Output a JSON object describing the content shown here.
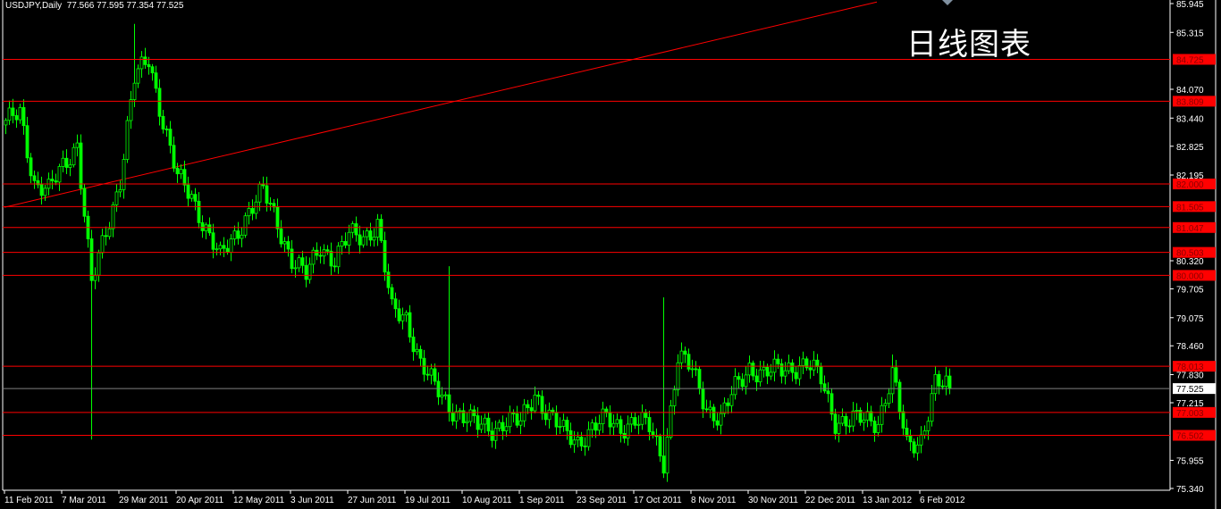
{
  "header": {
    "symbol_timeframe": "USDJPY,Daily",
    "ohlc": "77.566 77.595 77.354 77.525"
  },
  "overlay_text": "日线图表",
  "colors": {
    "background": "#000000",
    "candles": "#00ff00",
    "levels": "#ff0000",
    "level_label_bg": "#ff0000",
    "axis": "#ffffff",
    "current_price_line": "#808080"
  },
  "chart_data": {
    "type": "candlestick",
    "title": "USDJPY,Daily",
    "ylim": [
      75.34,
      85.945
    ],
    "y_ticks": [
      "85.945",
      "85.315",
      "84.070",
      "83.440",
      "82.825",
      "82.195",
      "80.320",
      "79.705",
      "79.075",
      "78.460",
      "77.830",
      "77.215",
      "75.955",
      "75.340"
    ],
    "x_ticks": [
      "11 Feb 2011",
      "7 Mar 2011",
      "29 Mar 2011",
      "20 Apr 2011",
      "12 May 2011",
      "3 Jun 2011",
      "27 Jun 2011",
      "19 Jul 2011",
      "10 Aug 2011",
      "1 Sep 2011",
      "23 Sep 2011",
      "17 Oct 2011",
      "8 Nov 2011",
      "30 Nov 2011",
      "22 Dec 2011",
      "13 Jan 2012",
      "6 Feb 2012"
    ],
    "bars_between_x_ticks": 16,
    "closes_every_4_bars": [
      83.29,
      83.58,
      82.02,
      81.82,
      82.41,
      82.9,
      79.77,
      80.95,
      82.12,
      84.27,
      84.75,
      83.39,
      82.12,
      81.73,
      81.04,
      80.36,
      80.85,
      81.43,
      81.82,
      81.14,
      80.36,
      79.97,
      80.65,
      80.36,
      80.85,
      80.85,
      81.14,
      79.19,
      79.09,
      78.11,
      77.53,
      77.14,
      76.94,
      76.69,
      76.65,
      76.84,
      76.75,
      77.43,
      76.94,
      76.55,
      76.39,
      76.65,
      76.84,
      76.69,
      76.84,
      76.65,
      75.96,
      78.21,
      77.92,
      77.14,
      76.84,
      77.53,
      78.02,
      77.82,
      77.92,
      78.02,
      78.05,
      77.72,
      76.84,
      76.8,
      76.84,
      76.84,
      77.82,
      76.26,
      76.45,
      77.62,
      77.525
    ],
    "spikes": [
      {
        "sample": 6,
        "low": 76.41
      },
      {
        "sample": 9,
        "high": 85.5
      },
      {
        "sample": 31,
        "high": 80.2
      },
      {
        "sample": 46,
        "high": 79.52,
        "low": 75.57
      },
      {
        "sample": 62,
        "high": 78.27
      }
    ],
    "horizontal_levels": [
      "84.725",
      "83.809",
      "82.000",
      "81.505",
      "81.047",
      "80.503",
      "80.000",
      "78.013",
      "77.003",
      "76.502"
    ],
    "current_price": "77.525",
    "trendline": [
      {
        "sample": 0,
        "price": 81.49
      },
      {
        "sample": 61,
        "price": 85.98
      }
    ]
  }
}
